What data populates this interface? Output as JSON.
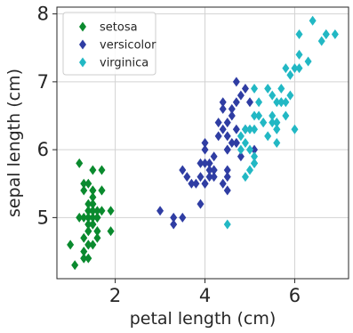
{
  "chart_data": {
    "type": "scatter",
    "xlabel": "petal length (cm)",
    "ylabel": "sepal length (cm)",
    "xlim": [
      0.7,
      7.2
    ],
    "ylim": [
      4.1,
      8.1
    ],
    "xticks": [
      2,
      4,
      6
    ],
    "yticks": [
      5,
      6,
      7,
      8
    ],
    "grid": true,
    "legend_position": "top-left",
    "marker": "diamond",
    "series": [
      {
        "name": "setosa",
        "color": "#0a8a2e",
        "points": [
          [
            1.4,
            5.1
          ],
          [
            1.4,
            4.9
          ],
          [
            1.3,
            4.7
          ],
          [
            1.5,
            4.6
          ],
          [
            1.4,
            5.0
          ],
          [
            1.7,
            5.4
          ],
          [
            1.4,
            4.6
          ],
          [
            1.5,
            5.0
          ],
          [
            1.4,
            4.4
          ],
          [
            1.5,
            4.9
          ],
          [
            1.5,
            5.4
          ],
          [
            1.6,
            4.8
          ],
          [
            1.4,
            4.8
          ],
          [
            1.1,
            4.3
          ],
          [
            1.2,
            5.8
          ],
          [
            1.5,
            5.7
          ],
          [
            1.3,
            5.4
          ],
          [
            1.4,
            5.1
          ],
          [
            1.7,
            5.7
          ],
          [
            1.5,
            5.1
          ],
          [
            1.7,
            5.4
          ],
          [
            1.5,
            5.1
          ],
          [
            1.0,
            4.6
          ],
          [
            1.7,
            5.1
          ],
          [
            1.9,
            4.8
          ],
          [
            1.6,
            5.0
          ],
          [
            1.6,
            5.0
          ],
          [
            1.5,
            5.2
          ],
          [
            1.4,
            5.2
          ],
          [
            1.6,
            4.7
          ],
          [
            1.6,
            4.8
          ],
          [
            1.5,
            5.4
          ],
          [
            1.5,
            5.2
          ],
          [
            1.4,
            5.5
          ],
          [
            1.5,
            4.9
          ],
          [
            1.2,
            5.0
          ],
          [
            1.3,
            5.5
          ],
          [
            1.4,
            4.9
          ],
          [
            1.3,
            4.4
          ],
          [
            1.5,
            5.1
          ],
          [
            1.3,
            5.0
          ],
          [
            1.3,
            4.5
          ],
          [
            1.3,
            4.4
          ],
          [
            1.6,
            5.0
          ],
          [
            1.9,
            5.1
          ],
          [
            1.4,
            4.8
          ],
          [
            1.6,
            5.1
          ],
          [
            1.4,
            4.6
          ],
          [
            1.5,
            5.3
          ],
          [
            1.4,
            5.0
          ]
        ]
      },
      {
        "name": "versicolor",
        "color": "#2f3da3",
        "points": [
          [
            4.7,
            7.0
          ],
          [
            4.5,
            6.4
          ],
          [
            4.9,
            6.9
          ],
          [
            4.0,
            5.5
          ],
          [
            4.6,
            6.5
          ],
          [
            4.5,
            5.7
          ],
          [
            4.7,
            6.3
          ],
          [
            3.3,
            4.9
          ],
          [
            4.6,
            6.6
          ],
          [
            3.9,
            5.2
          ],
          [
            3.5,
            5.0
          ],
          [
            4.2,
            5.9
          ],
          [
            4.0,
            6.0
          ],
          [
            4.7,
            6.1
          ],
          [
            3.6,
            5.6
          ],
          [
            4.4,
            6.7
          ],
          [
            4.5,
            5.6
          ],
          [
            4.1,
            5.8
          ],
          [
            4.5,
            6.2
          ],
          [
            3.9,
            5.6
          ],
          [
            4.8,
            5.9
          ],
          [
            4.0,
            6.1
          ],
          [
            4.9,
            6.3
          ],
          [
            4.7,
            6.1
          ],
          [
            4.3,
            6.4
          ],
          [
            4.4,
            6.6
          ],
          [
            4.8,
            6.8
          ],
          [
            5.0,
            6.7
          ],
          [
            4.5,
            6.0
          ],
          [
            3.5,
            5.7
          ],
          [
            3.8,
            5.5
          ],
          [
            3.7,
            5.5
          ],
          [
            3.9,
            5.8
          ],
          [
            5.1,
            6.0
          ],
          [
            4.5,
            5.4
          ],
          [
            4.5,
            6.0
          ],
          [
            4.7,
            6.7
          ],
          [
            4.4,
            6.3
          ],
          [
            4.1,
            5.6
          ],
          [
            4.0,
            5.5
          ],
          [
            4.4,
            5.5
          ],
          [
            4.6,
            6.1
          ],
          [
            4.0,
            5.8
          ],
          [
            3.3,
            5.0
          ],
          [
            4.2,
            5.6
          ],
          [
            4.2,
            5.7
          ],
          [
            4.2,
            5.7
          ],
          [
            4.3,
            6.2
          ],
          [
            3.0,
            5.1
          ],
          [
            4.1,
            5.7
          ]
        ]
      },
      {
        "name": "virginica",
        "color": "#22b8c4",
        "points": [
          [
            6.0,
            6.3
          ],
          [
            5.1,
            5.8
          ],
          [
            5.9,
            7.1
          ],
          [
            5.6,
            6.3
          ],
          [
            5.8,
            6.5
          ],
          [
            6.6,
            7.6
          ],
          [
            4.5,
            4.9
          ],
          [
            6.3,
            7.3
          ],
          [
            5.8,
            6.7
          ],
          [
            6.1,
            7.2
          ],
          [
            5.1,
            6.5
          ],
          [
            5.3,
            6.4
          ],
          [
            5.5,
            6.8
          ],
          [
            5.0,
            5.7
          ],
          [
            5.1,
            5.8
          ],
          [
            5.3,
            6.4
          ],
          [
            5.5,
            6.5
          ],
          [
            6.7,
            7.7
          ],
          [
            6.9,
            7.7
          ],
          [
            5.0,
            6.0
          ],
          [
            5.7,
            6.9
          ],
          [
            4.9,
            5.6
          ],
          [
            6.7,
            7.7
          ],
          [
            4.9,
            6.3
          ],
          [
            5.7,
            6.7
          ],
          [
            6.0,
            7.2
          ],
          [
            4.8,
            6.2
          ],
          [
            4.9,
            6.1
          ],
          [
            5.6,
            6.4
          ],
          [
            5.8,
            7.2
          ],
          [
            6.1,
            7.4
          ],
          [
            6.4,
            7.9
          ],
          [
            5.6,
            6.4
          ],
          [
            5.1,
            6.3
          ],
          [
            5.6,
            6.1
          ],
          [
            6.1,
            7.7
          ],
          [
            5.6,
            6.3
          ],
          [
            5.5,
            6.4
          ],
          [
            4.8,
            6.0
          ],
          [
            5.4,
            6.9
          ],
          [
            5.6,
            6.7
          ],
          [
            5.1,
            6.9
          ],
          [
            5.1,
            5.8
          ],
          [
            5.9,
            6.8
          ],
          [
            5.7,
            6.7
          ],
          [
            5.2,
            6.7
          ],
          [
            5.0,
            6.3
          ],
          [
            5.2,
            6.5
          ],
          [
            5.4,
            6.2
          ],
          [
            5.1,
            5.9
          ]
        ]
      }
    ]
  }
}
